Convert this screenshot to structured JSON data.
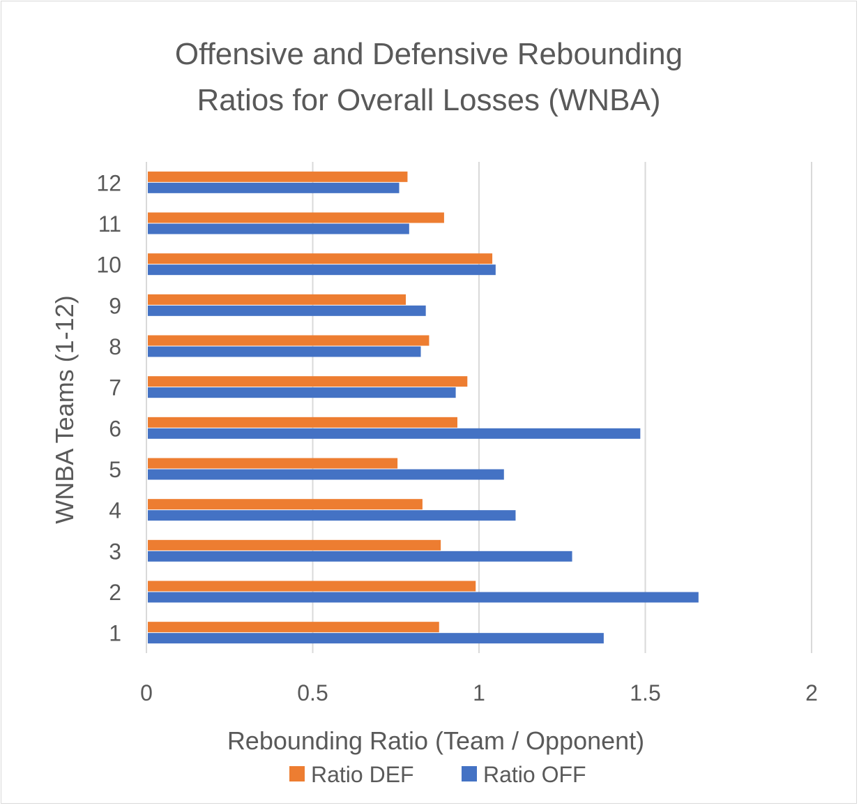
{
  "chart_data": {
    "type": "bar",
    "orientation": "horizontal",
    "title_lines": [
      "Offensive and Defensive Rebounding",
      "Ratios for Overall Losses (WNBA)"
    ],
    "xlabel": "Rebounding Ratio (Team / Opponent)",
    "ylabel": "WNBA Teams (1-12)",
    "categories": [
      "1",
      "2",
      "3",
      "4",
      "5",
      "6",
      "7",
      "8",
      "9",
      "10",
      "11",
      "12"
    ],
    "xlim": [
      0,
      2
    ],
    "xticks": [
      "0",
      "0.5",
      "1",
      "1.5",
      "2"
    ],
    "xtick_values": [
      0,
      0.5,
      1,
      1.5,
      2
    ],
    "grid": true,
    "legend_position": "bottom",
    "series": [
      {
        "name": "Ratio DEF",
        "color": "#ed7d31",
        "values": [
          0.88,
          0.99,
          0.885,
          0.83,
          0.755,
          0.935,
          0.965,
          0.85,
          0.78,
          1.04,
          0.895,
          0.785
        ]
      },
      {
        "name": "Ratio OFF",
        "color": "#4472c4",
        "values": [
          1.375,
          1.66,
          1.28,
          1.11,
          1.075,
          1.485,
          0.93,
          0.825,
          0.84,
          1.05,
          0.79,
          0.76
        ]
      }
    ]
  }
}
